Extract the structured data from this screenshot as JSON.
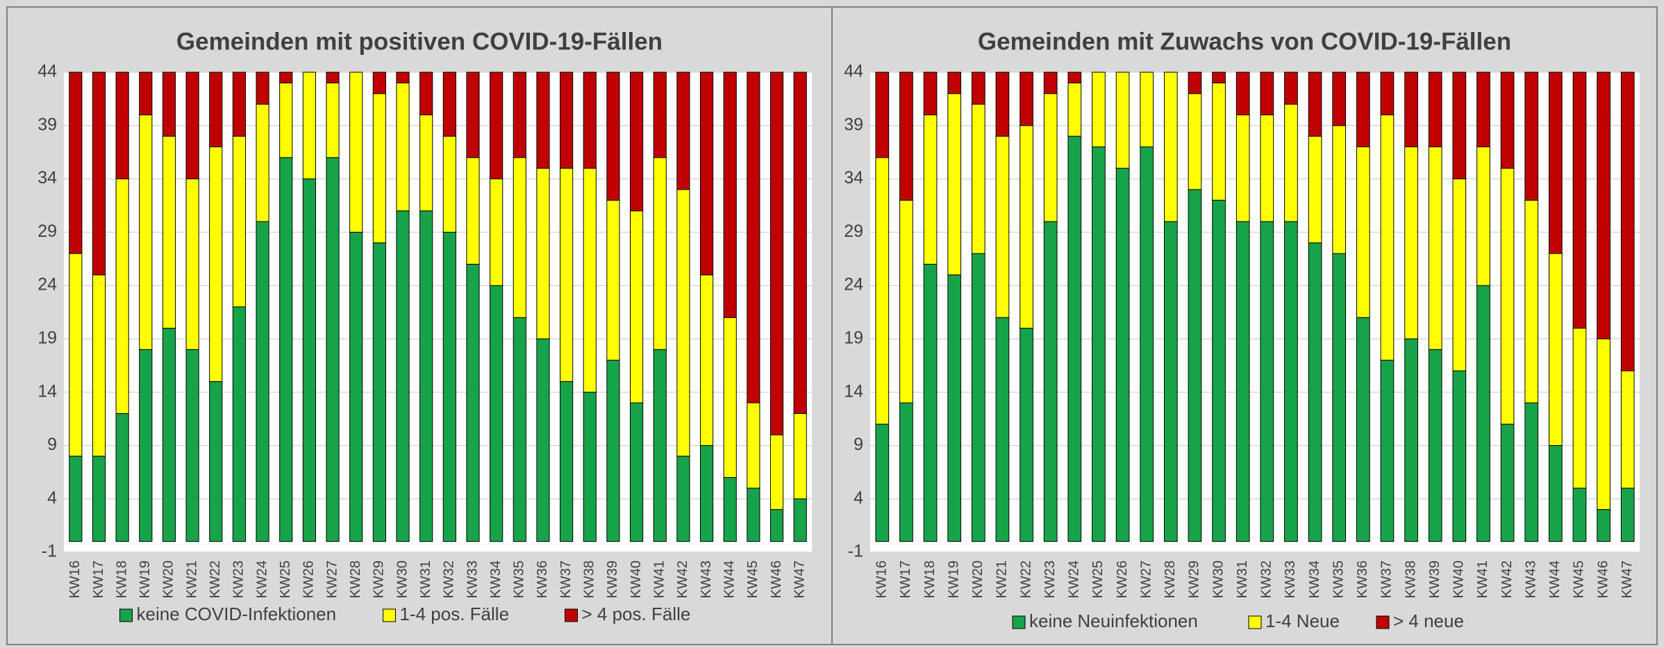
{
  "chart_data": [
    {
      "type": "bar",
      "stacked": true,
      "title": "Gemeinden mit positiven COVID-19-Fällen",
      "categories": [
        "KW16",
        "KW17",
        "KW18",
        "KW19",
        "KW20",
        "KW21",
        "KW22",
        "KW23",
        "KW24",
        "KW25",
        "KW26",
        "KW27",
        "KW28",
        "KW29",
        "KW30",
        "KW31",
        "KW32",
        "KW33",
        "KW34",
        "KW35",
        "KW36",
        "KW37",
        "KW38",
        "KW39",
        "KW40",
        "KW41",
        "KW42",
        "KW43",
        "KW44",
        "KW45",
        "KW46",
        "KW47"
      ],
      "series": [
        {
          "name": "keine COVID-Infektionen",
          "color": "#17a34a",
          "values": [
            8,
            8,
            12,
            18,
            20,
            18,
            15,
            22,
            30,
            36,
            34,
            36,
            29,
            28,
            31,
            31,
            29,
            26,
            24,
            21,
            19,
            15,
            14,
            17,
            13,
            18,
            8,
            9,
            6,
            5,
            3,
            4
          ]
        },
        {
          "name": "1-4 pos. Fälle",
          "color": "#ffff00",
          "values": [
            19,
            17,
            22,
            22,
            18,
            16,
            22,
            16,
            11,
            7,
            10,
            7,
            15,
            14,
            12,
            9,
            9,
            10,
            10,
            15,
            16,
            20,
            21,
            15,
            18,
            18,
            25,
            16,
            15,
            8,
            7,
            8
          ]
        },
        {
          "name": "> 4 pos. Fälle",
          "color": "#c00000",
          "values": [
            17,
            19,
            10,
            4,
            6,
            10,
            7,
            6,
            3,
            1,
            0,
            1,
            0,
            2,
            1,
            4,
            6,
            8,
            10,
            8,
            9,
            9,
            9,
            12,
            13,
            8,
            11,
            19,
            23,
            31,
            34,
            32
          ]
        }
      ],
      "ylim": [
        -1,
        44
      ],
      "yticks": [
        -1,
        4,
        9,
        14,
        19,
        24,
        29,
        34,
        39,
        44
      ],
      "grid": true,
      "legend": "bottom"
    },
    {
      "type": "bar",
      "stacked": true,
      "title": "Gemeinden mit Zuwachs von COVID-19-Fällen",
      "categories": [
        "KW16",
        "KW17",
        "KW18",
        "KW19",
        "KW20",
        "KW21",
        "KW22",
        "KW23",
        "KW24",
        "KW25",
        "KW26",
        "KW27",
        "KW28",
        "KW29",
        "KW30",
        "KW31",
        "KW32",
        "KW33",
        "KW34",
        "KW35",
        "KW36",
        "KW37",
        "KW38",
        "KW39",
        "KW40",
        "KW41",
        "KW42",
        "KW43",
        "KW44",
        "KW45",
        "KW46",
        "KW47"
      ],
      "series": [
        {
          "name": "keine Neuinfektionen",
          "color": "#17a34a",
          "values": [
            11,
            13,
            26,
            25,
            27,
            21,
            20,
            30,
            38,
            37,
            35,
            37,
            30,
            33,
            32,
            30,
            30,
            30,
            28,
            27,
            21,
            17,
            19,
            18,
            16,
            24,
            11,
            13,
            9,
            5,
            3,
            5
          ]
        },
        {
          "name": "1-4 Neue",
          "color": "#ffff00",
          "values": [
            25,
            19,
            14,
            17,
            14,
            17,
            19,
            12,
            5,
            7,
            9,
            7,
            14,
            9,
            11,
            10,
            10,
            11,
            10,
            12,
            16,
            23,
            18,
            19,
            18,
            13,
            24,
            19,
            18,
            15,
            16,
            11
          ]
        },
        {
          "name": "> 4 neue",
          "color": "#c00000",
          "values": [
            8,
            12,
            4,
            2,
            3,
            6,
            5,
            2,
            1,
            0,
            0,
            0,
            0,
            2,
            1,
            4,
            4,
            3,
            6,
            5,
            7,
            4,
            7,
            7,
            10,
            7,
            9,
            12,
            17,
            24,
            25,
            28
          ]
        }
      ],
      "ylim": [
        -1,
        44
      ],
      "yticks": [
        -1,
        4,
        9,
        14,
        19,
        24,
        29,
        34,
        39,
        44
      ],
      "grid": true,
      "legend": "bottom"
    }
  ]
}
